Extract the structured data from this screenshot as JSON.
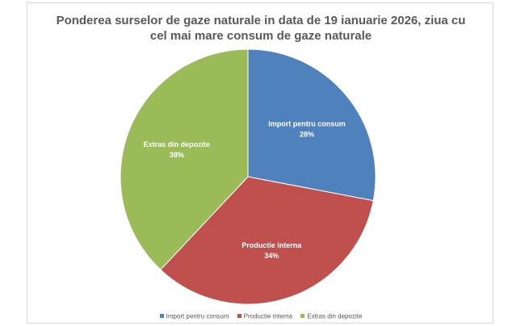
{
  "chart_data": {
    "type": "pie",
    "title_lines": [
      "Ponderea surselor de gaze naturale in data de 19 ianuarie 2026, ziua cu",
      "cel mai mare consum de gaze naturale"
    ],
    "slices": [
      {
        "label": "Import pentru consum",
        "value": 28,
        "value_label": "28%",
        "color": "#4f81bd"
      },
      {
        "label": "Productie interna",
        "value": 34,
        "value_label": "34%",
        "color": "#c0504d"
      },
      {
        "label": "Extras din depozite",
        "value": 38,
        "value_label": "38%",
        "color": "#9bbb59"
      }
    ],
    "legend_position": "bottom"
  }
}
